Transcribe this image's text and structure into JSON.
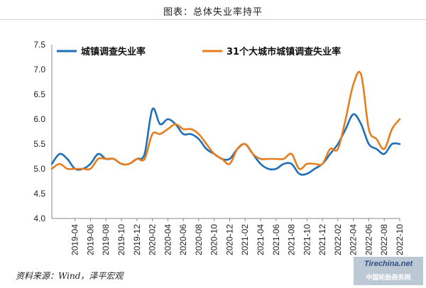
{
  "page": {
    "title": "图表：总体失业率持平",
    "source": "资料来源：Wind，泽平宏观"
  },
  "watermark": {
    "brand": "Tirechina.net",
    "name": "中国轮胎商务网"
  },
  "chart_data": {
    "type": "line",
    "title": "",
    "xlabel": "",
    "ylabel": "",
    "ylim": [
      4.0,
      7.5
    ],
    "yticks": [
      "4.0",
      "4.5",
      "5.0",
      "5.5",
      "6.0",
      "6.5",
      "7.0",
      "7.5"
    ],
    "grid": false,
    "legend_position": "top",
    "x": [
      "2019-01",
      "2019-02",
      "2019-03",
      "2019-04",
      "2019-05",
      "2019-06",
      "2019-07",
      "2019-08",
      "2019-09",
      "2019-10",
      "2019-11",
      "2019-12",
      "2020-01",
      "2020-02",
      "2020-03",
      "2020-04",
      "2020-05",
      "2020-06",
      "2020-07",
      "2020-08",
      "2020-09",
      "2020-10",
      "2020-11",
      "2020-12",
      "2021-01",
      "2021-02",
      "2021-03",
      "2021-04",
      "2021-05",
      "2021-06",
      "2021-07",
      "2021-08",
      "2021-09",
      "2021-10",
      "2021-11",
      "2021-12",
      "2022-01",
      "2022-02",
      "2022-03",
      "2022-04",
      "2022-05",
      "2022-06",
      "2022-07",
      "2022-08",
      "2022-09",
      "2022-10"
    ],
    "xtick_labels": [
      "2019-04",
      "2019-06",
      "2019-08",
      "2019-10",
      "2019-12",
      "2020-02",
      "2020-04",
      "2020-06",
      "2020-08",
      "2020-10",
      "2020-12",
      "2021-02",
      "2021-04",
      "2021-06",
      "2021-08",
      "2021-10",
      "2021-12",
      "2022-02",
      "2022-04",
      "2022-06",
      "2022-08",
      "2022-10"
    ],
    "series": [
      {
        "name": "城镇调查失业率",
        "color": "#1f6fb8",
        "values": [
          5.1,
          5.3,
          5.2,
          5.0,
          5.0,
          5.1,
          5.3,
          5.2,
          5.2,
          5.1,
          5.1,
          5.2,
          5.3,
          6.2,
          5.9,
          6.0,
          5.9,
          5.7,
          5.7,
          5.6,
          5.4,
          5.3,
          5.2,
          5.2,
          5.4,
          5.5,
          5.3,
          5.1,
          5.0,
          5.0,
          5.1,
          5.1,
          4.9,
          4.9,
          5.0,
          5.1,
          5.3,
          5.5,
          5.8,
          6.1,
          5.9,
          5.5,
          5.4,
          5.3,
          5.5,
          5.5
        ]
      },
      {
        "name": "31个大城市城镇调查失业率",
        "color": "#e87d1e",
        "values": [
          5.0,
          5.1,
          5.0,
          5.0,
          5.0,
          5.0,
          5.2,
          5.2,
          5.2,
          5.1,
          5.1,
          5.2,
          5.2,
          5.7,
          5.7,
          5.8,
          5.9,
          5.8,
          5.8,
          5.7,
          5.5,
          5.3,
          5.2,
          5.1,
          5.4,
          5.5,
          5.3,
          5.2,
          5.2,
          5.2,
          5.2,
          5.3,
          5.0,
          5.1,
          5.1,
          5.1,
          5.4,
          5.4,
          6.0,
          6.7,
          6.9,
          5.8,
          5.6,
          5.4,
          5.8,
          6.0
        ]
      }
    ]
  }
}
